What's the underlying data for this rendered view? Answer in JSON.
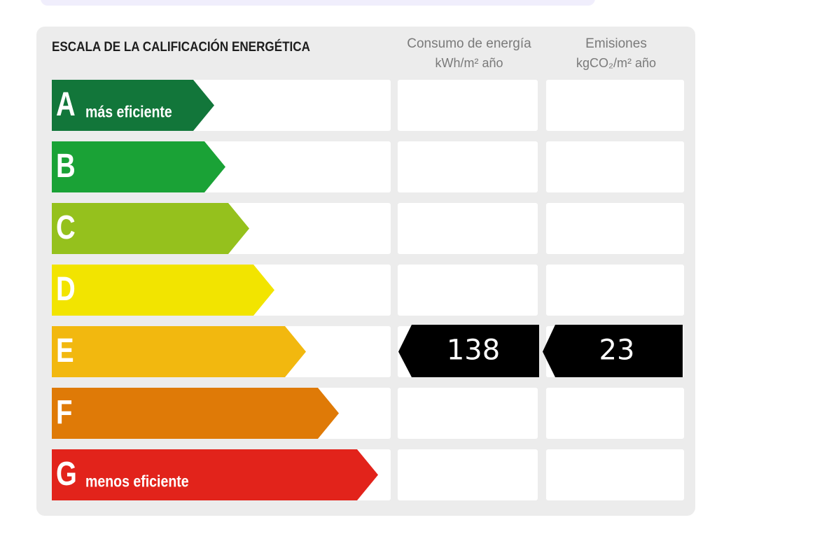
{
  "title": "ESCALA DE LA CALIFICACIÓN ENERGÉTICA",
  "columns": [
    {
      "line1": "Consumo de energía",
      "line2": "kWh/m² año"
    },
    {
      "line1": "Emisiones",
      "line2": "kgCO₂/m² año"
    }
  ],
  "rows": [
    {
      "letter": "A",
      "label": "más eficiente",
      "color": "#12763a"
    },
    {
      "letter": "B",
      "color": "#1aa236"
    },
    {
      "letter": "C",
      "color": "#95c11d"
    },
    {
      "letter": "D",
      "color": "#f2e400"
    },
    {
      "letter": "E",
      "color": "#f2b80f",
      "consumption": 138,
      "emissions": 23
    },
    {
      "letter": "F",
      "color": "#df7a07"
    },
    {
      "letter": "G",
      "label": "menos eficiente",
      "color": "#e2231b"
    }
  ]
}
